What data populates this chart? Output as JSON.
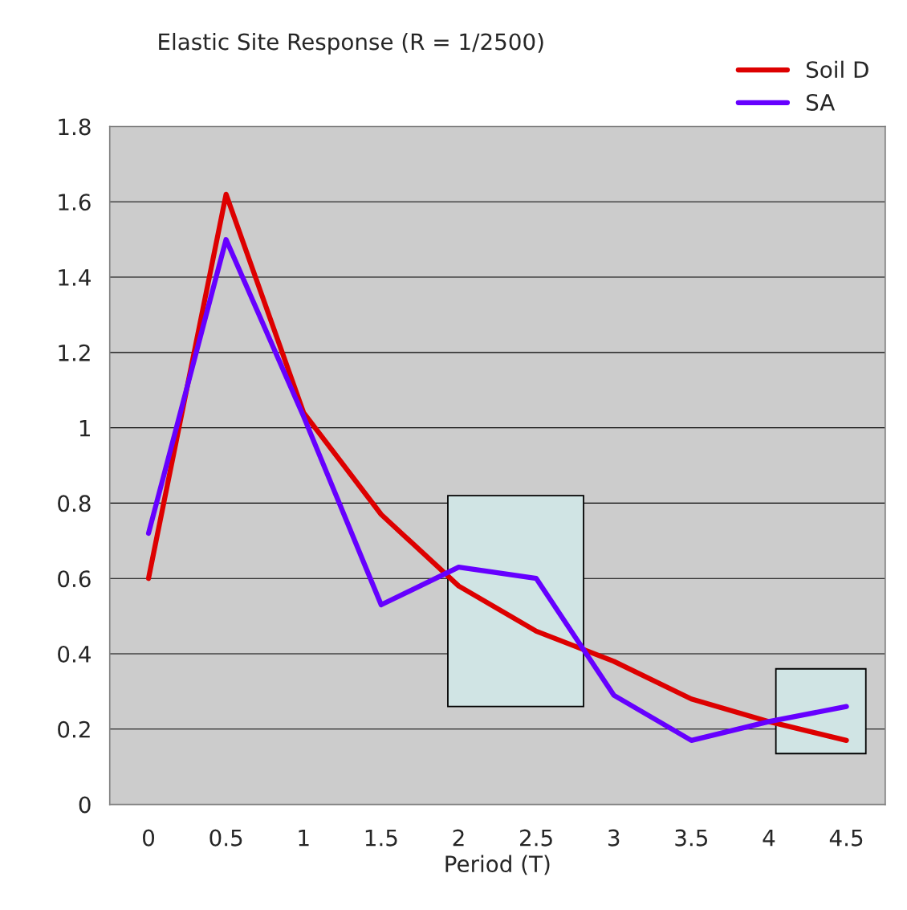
{
  "chart_data": {
    "type": "line",
    "title": "Elastic Site Response (R = 1/2500)",
    "xlabel": "Period (T)",
    "categories": [
      "0",
      "0.5",
      "1",
      "1.5",
      "2",
      "2.5",
      "3",
      "3.5",
      "4",
      "4.5"
    ],
    "series": [
      {
        "name": "Soil D",
        "color": "#dd0000",
        "values": [
          0.6,
          1.62,
          1.04,
          0.77,
          0.58,
          0.46,
          0.38,
          0.28,
          0.22,
          0.17
        ]
      },
      {
        "name": "SA",
        "color": "#6600ff",
        "values": [
          0.72,
          1.5,
          1.03,
          0.53,
          0.63,
          0.6,
          0.29,
          0.17,
          0.22,
          0.26
        ]
      }
    ],
    "ylim": [
      0,
      1.8
    ],
    "yticks": [
      0,
      0.2,
      0.4,
      0.6,
      0.8,
      1,
      1.2,
      1.4,
      1.6,
      1.8
    ],
    "grid": "y",
    "legend": "top right",
    "marker": "none",
    "line_style": "solid"
  }
}
